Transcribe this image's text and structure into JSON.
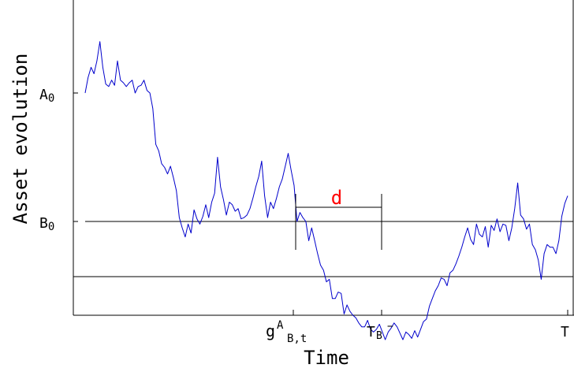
{
  "chart_data": {
    "type": "line",
    "xlabel": "Time",
    "ylabel": "Asset evolution",
    "y_ticks": {
      "A0": {
        "base": "A",
        "sub": "0"
      },
      "B0": {
        "base": "B",
        "sub": "0"
      }
    },
    "x_ticks": {
      "g": {
        "base": "g",
        "sup": "A",
        "sub": "B,t"
      },
      "tb": {
        "base": "T",
        "sub": "B",
        "sup": "−"
      },
      "t": {
        "text": "T"
      }
    },
    "annotation": {
      "label": "d",
      "color": "#ff0000"
    },
    "colors": {
      "series": "#0000cc",
      "axes": "#000000"
    },
    "grid": false,
    "series": [
      {
        "values": [
          0.0,
          0.12,
          0.2,
          0.15,
          0.25,
          0.4,
          0.2,
          0.07,
          0.05,
          0.1,
          0.06,
          0.25,
          0.1,
          0.08,
          0.05,
          0.08,
          0.1,
          0.0,
          0.05,
          0.06,
          0.1,
          0.02,
          0.0,
          -0.12,
          -0.4,
          -0.45,
          -0.55,
          -0.58,
          -0.63,
          -0.57,
          -0.66,
          -0.76,
          -0.97,
          -1.05,
          -1.12,
          -1.02,
          -1.09,
          -0.91,
          -0.98,
          -1.02,
          -0.96,
          -0.87,
          -0.97,
          -0.85,
          -0.78,
          -0.5,
          -0.73,
          -0.83,
          -0.95,
          -0.85,
          -0.87,
          -0.92,
          -0.9,
          -0.98,
          -0.97,
          -0.95,
          -0.9,
          -0.82,
          -0.73,
          -0.65,
          -0.53,
          -0.8,
          -0.97,
          -0.85,
          -0.9,
          -0.82,
          -0.73,
          -0.67,
          -0.57,
          -0.47,
          -0.6,
          -0.72,
          -1.0,
          -0.93,
          -0.97,
          -1.0,
          -1.15,
          -1.05,
          -1.15,
          -1.25,
          -1.34,
          -1.38,
          -1.47,
          -1.45,
          -1.6,
          -1.6,
          -1.55,
          -1.56,
          -1.72,
          -1.65,
          -1.7,
          -1.73,
          -1.75,
          -1.79,
          -1.82,
          -1.82,
          -1.77,
          -1.84,
          -1.86,
          -1.84,
          -1.8,
          -1.86,
          -1.92,
          -1.86,
          -1.83,
          -1.79,
          -1.82,
          -1.87,
          -1.92,
          -1.86,
          -1.88,
          -1.91,
          -1.85,
          -1.9,
          -1.84,
          -1.78,
          -1.76,
          -1.66,
          -1.6,
          -1.54,
          -1.5,
          -1.44,
          -1.45,
          -1.5,
          -1.4,
          -1.38,
          -1.33,
          -1.27,
          -1.2,
          -1.12,
          -1.05,
          -1.14,
          -1.18,
          -1.02,
          -1.1,
          -1.12,
          -1.04,
          -1.2,
          -1.03,
          -1.07,
          -0.98,
          -1.08,
          -1.02,
          -1.03,
          -1.15,
          -1.05,
          -0.9,
          -0.7,
          -0.95,
          -0.98,
          -1.06,
          -1.02,
          -1.18,
          -1.22,
          -1.3,
          -1.45,
          -1.25,
          -1.18,
          -1.2,
          -1.2,
          -1.25,
          -1.15,
          -0.96,
          -0.86,
          -0.8
        ]
      }
    ]
  }
}
